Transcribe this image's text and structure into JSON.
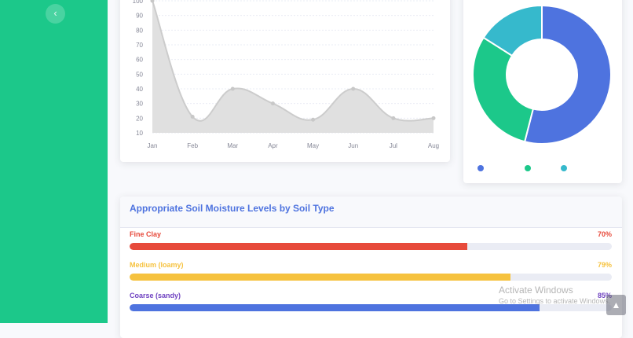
{
  "sidebar": {
    "toggle_icon": "chevron-left-icon",
    "toggle_glyph": "‹"
  },
  "area_chart": {
    "chart_data": {
      "type": "area",
      "categories": [
        "Jan",
        "Feb",
        "Mar",
        "Apr",
        "May",
        "Jun",
        "Jul",
        "Aug"
      ],
      "values": [
        100,
        21,
        40,
        30,
        19,
        40,
        20,
        20
      ],
      "yticks": [
        10,
        20,
        30,
        40,
        50,
        60,
        70,
        80,
        90,
        100
      ],
      "ylim": [
        10,
        100
      ],
      "grid": true,
      "color": "#cccccc"
    }
  },
  "donut_chart": {
    "chart_data": {
      "type": "pie",
      "values": [
        54,
        30,
        16
      ],
      "colors": [
        "#4e73df",
        "#1cc88a",
        "#36b9cc"
      ],
      "hole": true
    }
  },
  "moisture": {
    "title": "Appropriate Soil Moisture Levels by Soil Type",
    "items": [
      {
        "label": "Fine Clay",
        "percent_text": "70%",
        "value": 70,
        "color": "#e74a3b"
      },
      {
        "label": "Medium (loamy)",
        "percent_text": "79%",
        "value": 79,
        "color": "#f6c23e"
      },
      {
        "label": "Coarse (sandy)",
        "percent_text": "85%",
        "value": 85,
        "color": "#4e73df",
        "label_color": "#6f42c1"
      }
    ]
  },
  "watermark": {
    "title": "Activate Windows",
    "subtitle": "Go to Settings to activate Windows."
  },
  "scroll_top": {
    "icon": "arrow-up-icon",
    "glyph": "▲"
  }
}
